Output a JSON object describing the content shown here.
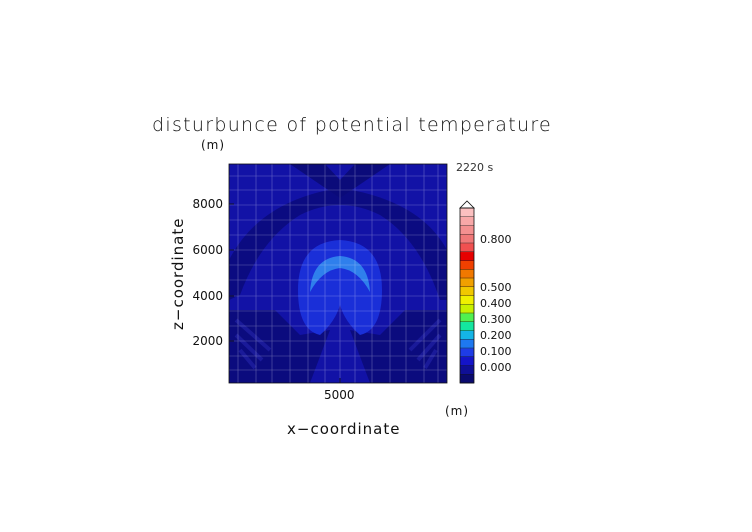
{
  "chart_data": {
    "type": "contour",
    "title": "disturbunce of potential temperature",
    "xlabel": "x−coordinate",
    "ylabel": "z−coordinate",
    "x_unit": "(m)",
    "z_unit": "(m)",
    "time_label": "2220 s",
    "xlim": [
      0,
      10000
    ],
    "ylim": [
      0,
      10000
    ],
    "x_ticks": [
      "5000"
    ],
    "y_ticks": [
      "2000",
      "4000",
      "6000",
      "8000"
    ],
    "colorbar": {
      "tick_labels": [
        "0.000",
        "0.100",
        "0.200",
        "0.300",
        "0.400",
        "0.500",
        "0.800"
      ],
      "colors": [
        "#0a0a6e",
        "#0f0f96",
        "#1414c8",
        "#1e3ce6",
        "#1e78f0",
        "#14b4e6",
        "#14e6a0",
        "#50f050",
        "#c8f000",
        "#f0f000",
        "#f0c800",
        "#f0a000",
        "#f07800",
        "#f04000",
        "#e60000",
        "#f05050",
        "#f07878",
        "#f49090",
        "#f8a8a8",
        "#fbc0c0"
      ]
    },
    "field_levels": [
      {
        "level": "0.025",
        "color": "#1212a6"
      },
      {
        "level": "0.000",
        "color": "#0b0b7a"
      },
      {
        "level": "0.050",
        "color": "#1a2fd8"
      },
      {
        "level": "0.100",
        "color": "#2f7fec"
      }
    ]
  }
}
